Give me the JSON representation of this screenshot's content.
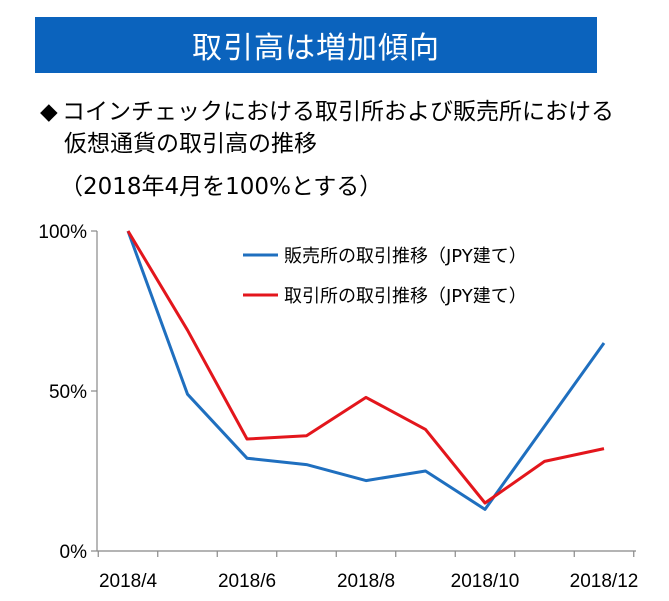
{
  "header": {
    "title": "取引高は増加傾向"
  },
  "subtitle": {
    "bullet": "◆",
    "line1": "コインチェックにおける取引所および販売所における",
    "line2": "仮想通貨の取引高の推移"
  },
  "note": "（2018年4月を100%とする）",
  "chart_data": {
    "type": "line",
    "x": [
      "2018/4",
      "2018/5",
      "2018/6",
      "2018/7",
      "2018/8",
      "2018/9",
      "2018/10",
      "2018/11",
      "2018/12"
    ],
    "x_tick_labels": [
      "2018/4",
      "2018/6",
      "2018/8",
      "2018/10",
      "2018/12"
    ],
    "y_tick_labels": [
      "0%",
      "50%",
      "100%"
    ],
    "ylim": [
      0,
      100
    ],
    "series": [
      {
        "name": "販売所の取引推移（JPY建て）",
        "color": "#1f6fbf",
        "values": [
          100,
          49,
          29,
          27,
          22,
          25,
          13,
          39,
          65
        ]
      },
      {
        "name": "取引所の取引推移（JPY建て）",
        "color": "#e3161c",
        "values": [
          100,
          69,
          35,
          36,
          48,
          38,
          15,
          28,
          32
        ]
      }
    ],
    "legend_position": "top-right",
    "grid": false
  }
}
